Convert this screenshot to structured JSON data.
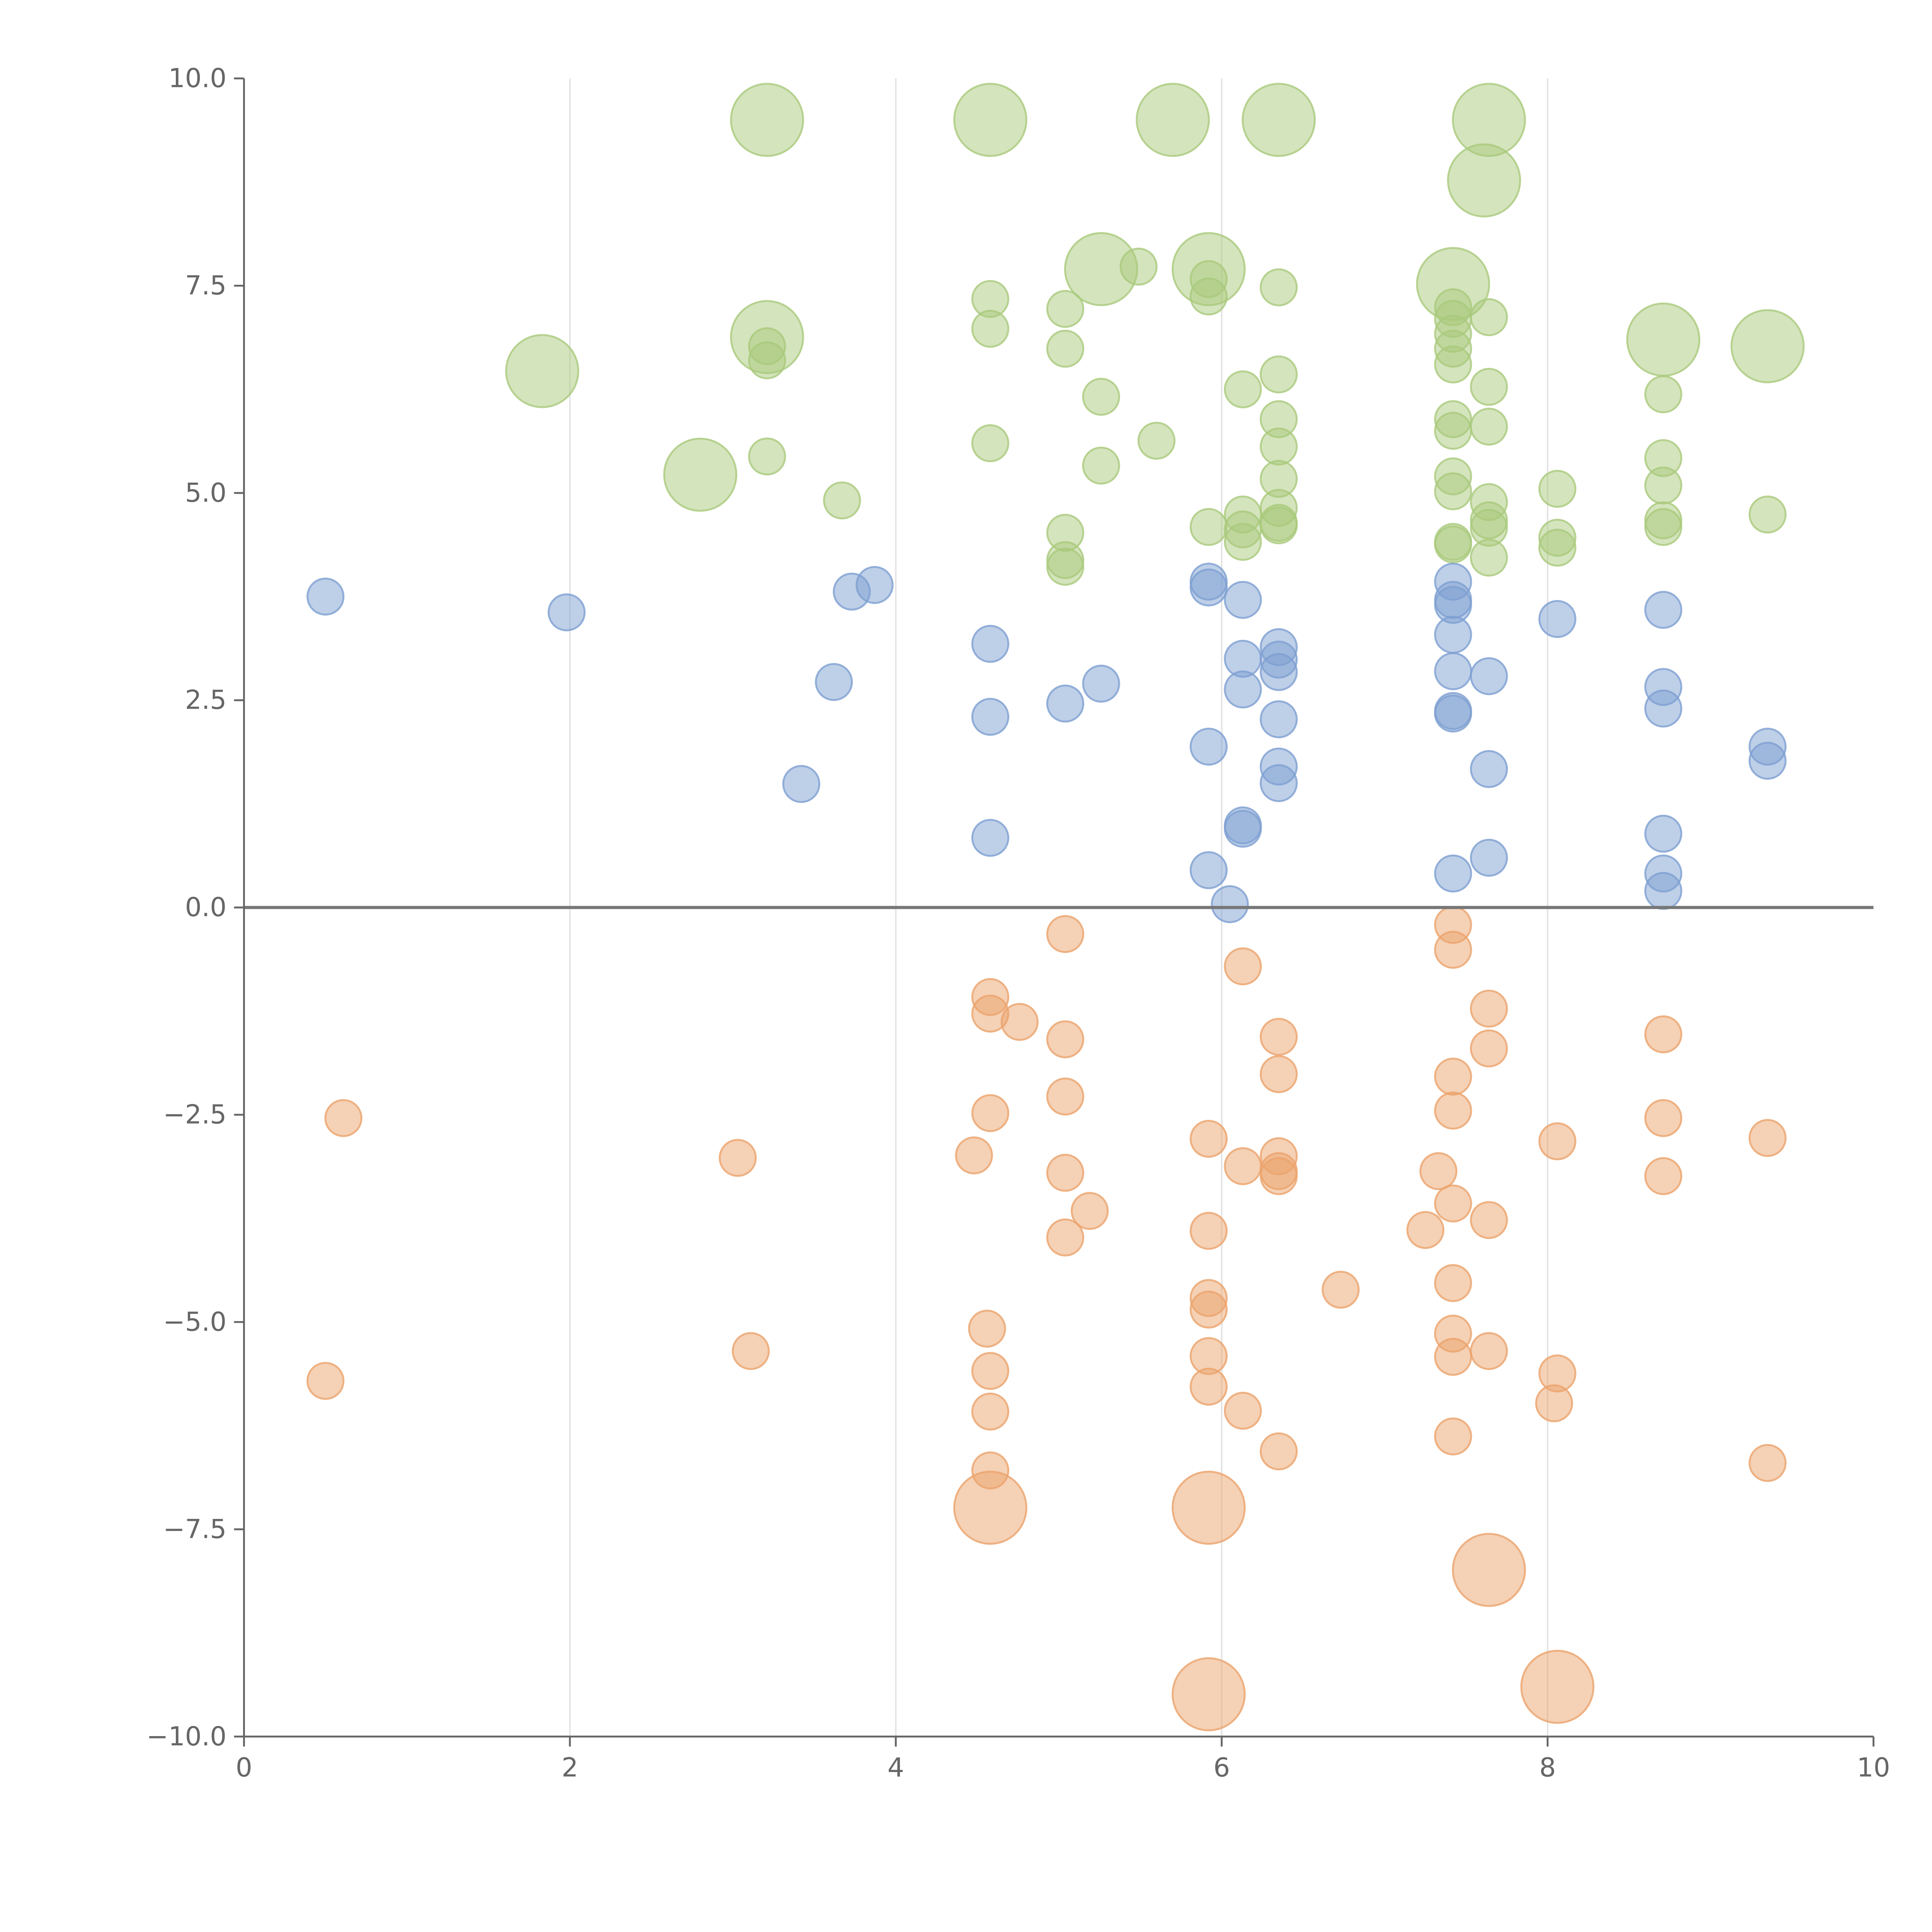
{
  "chart_data": {
    "type": "scatter",
    "title": "",
    "xlabel": "",
    "ylabel": "",
    "xlim": [
      0,
      10
    ],
    "ylim": [
      -10,
      10
    ],
    "xticks": [
      "0",
      "2",
      "4",
      "6",
      "8",
      "10"
    ],
    "yticks": [
      "10.0",
      "7.5",
      "5.0",
      "2.5",
      "0.0",
      "−2.5",
      "−5.0",
      "−7.5",
      "−10.0"
    ],
    "grid": "vertical",
    "legend": "none",
    "reference_line_y": 0,
    "colors": {
      "green": "#a9c97c",
      "blue": "#7d9fd1",
      "orange": "#eba36c",
      "axis": "#666666",
      "zero_line": "#777777",
      "grid": "#e3e3e3"
    },
    "series": [
      {
        "name": "green",
        "points": [
          [
            3.21,
            9.5,
            4
          ],
          [
            4.58,
            9.5,
            4
          ],
          [
            5.7,
            9.5,
            4
          ],
          [
            6.35,
            9.5,
            4
          ],
          [
            7.64,
            9.5,
            4
          ],
          [
            7.61,
            8.77,
            4
          ],
          [
            5.26,
            7.7,
            4
          ],
          [
            5.92,
            7.7,
            4
          ],
          [
            7.42,
            7.52,
            4
          ],
          [
            3.21,
            6.88,
            4
          ],
          [
            1.83,
            6.47,
            4
          ],
          [
            2.8,
            5.22,
            4
          ],
          [
            8.71,
            6.85,
            4
          ],
          [
            9.35,
            6.77,
            4
          ],
          [
            3.21,
            6.77,
            1
          ],
          [
            3.21,
            6.6,
            1
          ],
          [
            3.21,
            5.44,
            1
          ],
          [
            3.67,
            4.91,
            1
          ],
          [
            4.58,
            7.34,
            1
          ],
          [
            4.58,
            6.98,
            1
          ],
          [
            4.58,
            5.6,
            1
          ],
          [
            5.04,
            7.22,
            1
          ],
          [
            5.04,
            6.74,
            1
          ],
          [
            5.04,
            4.52,
            1
          ],
          [
            5.04,
            4.19,
            1
          ],
          [
            5.04,
            4.11,
            1
          ],
          [
            5.26,
            6.16,
            1
          ],
          [
            5.26,
            5.33,
            1
          ],
          [
            5.49,
            7.73,
            1
          ],
          [
            5.6,
            5.63,
            1
          ],
          [
            5.92,
            7.58,
            1
          ],
          [
            5.92,
            7.37,
            1
          ],
          [
            5.92,
            4.59,
            1
          ],
          [
            6.13,
            6.25,
            1
          ],
          [
            6.13,
            4.74,
            1
          ],
          [
            6.13,
            4.56,
            1
          ],
          [
            6.13,
            4.41,
            1
          ],
          [
            6.35,
            7.48,
            1
          ],
          [
            6.35,
            6.43,
            1
          ],
          [
            6.35,
            5.89,
            1
          ],
          [
            6.35,
            5.56,
            1
          ],
          [
            6.35,
            5.17,
            1
          ],
          [
            6.35,
            4.82,
            1
          ],
          [
            6.35,
            4.64,
            1
          ],
          [
            6.35,
            4.61,
            1
          ],
          [
            7.42,
            7.24,
            1
          ],
          [
            7.42,
            7.1,
            1
          ],
          [
            7.42,
            6.92,
            1
          ],
          [
            7.42,
            6.74,
            1
          ],
          [
            7.42,
            6.55,
            1
          ],
          [
            7.42,
            5.89,
            1
          ],
          [
            7.42,
            5.75,
            1
          ],
          [
            7.42,
            5.2,
            1
          ],
          [
            7.42,
            5.02,
            1
          ],
          [
            7.42,
            4.41,
            1
          ],
          [
            7.42,
            4.38,
            1
          ],
          [
            7.64,
            7.12,
            1
          ],
          [
            7.64,
            6.28,
            1
          ],
          [
            7.64,
            5.8,
            1
          ],
          [
            7.64,
            4.89,
            1
          ],
          [
            7.64,
            4.67,
            1
          ],
          [
            7.64,
            4.58,
            1
          ],
          [
            7.64,
            4.22,
            1
          ],
          [
            8.06,
            5.05,
            1
          ],
          [
            8.06,
            4.46,
            1
          ],
          [
            8.06,
            4.34,
            1
          ],
          [
            8.71,
            6.19,
            1
          ],
          [
            8.71,
            5.42,
            1
          ],
          [
            8.71,
            5.09,
            1
          ],
          [
            8.71,
            4.67,
            1
          ],
          [
            8.71,
            4.59,
            1
          ],
          [
            9.35,
            4.74,
            1
          ]
        ]
      },
      {
        "name": "blue",
        "points": [
          [
            0.5,
            3.75,
            1
          ],
          [
            1.98,
            3.56,
            1
          ],
          [
            3.42,
            1.49,
            1
          ],
          [
            3.62,
            2.72,
            1
          ],
          [
            3.73,
            3.81,
            1
          ],
          [
            3.87,
            3.89,
            1
          ],
          [
            4.58,
            3.18,
            1
          ],
          [
            4.58,
            2.3,
            1
          ],
          [
            4.58,
            0.84,
            1
          ],
          [
            5.04,
            2.46,
            1
          ],
          [
            5.26,
            2.7,
            1
          ],
          [
            5.92,
            3.93,
            1
          ],
          [
            5.92,
            3.86,
            1
          ],
          [
            5.92,
            1.94,
            1
          ],
          [
            5.92,
            0.45,
            1
          ],
          [
            6.05,
            0.04,
            1
          ],
          [
            6.13,
            3.71,
            1
          ],
          [
            6.13,
            3.0,
            1
          ],
          [
            6.13,
            2.63,
            1
          ],
          [
            6.13,
            0.99,
            1
          ],
          [
            6.13,
            0.95,
            1
          ],
          [
            6.35,
            3.14,
            1
          ],
          [
            6.35,
            2.99,
            1
          ],
          [
            6.35,
            2.84,
            1
          ],
          [
            6.35,
            2.27,
            1
          ],
          [
            6.35,
            1.7,
            1
          ],
          [
            6.35,
            1.5,
            1
          ],
          [
            7.42,
            3.93,
            1
          ],
          [
            7.42,
            3.71,
            1
          ],
          [
            7.42,
            3.65,
            1
          ],
          [
            7.42,
            3.29,
            1
          ],
          [
            7.42,
            2.85,
            1
          ],
          [
            7.42,
            2.37,
            1
          ],
          [
            7.42,
            2.34,
            1
          ],
          [
            7.42,
            0.41,
            1
          ],
          [
            7.64,
            2.79,
            1
          ],
          [
            7.64,
            1.67,
            1
          ],
          [
            7.64,
            0.6,
            1
          ],
          [
            8.06,
            3.48,
            1
          ],
          [
            8.71,
            3.59,
            1
          ],
          [
            8.71,
            2.66,
            1
          ],
          [
            8.71,
            2.4,
            1
          ],
          [
            8.71,
            0.89,
            1
          ],
          [
            8.71,
            0.41,
            1
          ],
          [
            8.71,
            0.2,
            1
          ],
          [
            9.35,
            1.94,
            1
          ],
          [
            9.35,
            1.77,
            1
          ]
        ]
      },
      {
        "name": "orange",
        "points": [
          [
            4.58,
            -7.24,
            4
          ],
          [
            5.92,
            -7.24,
            4
          ],
          [
            7.64,
            -7.99,
            4
          ],
          [
            5.92,
            -9.49,
            4
          ],
          [
            8.06,
            -9.4,
            4
          ],
          [
            0.61,
            -2.54,
            1
          ],
          [
            0.5,
            -5.71,
            1
          ],
          [
            3.03,
            -3.02,
            1
          ],
          [
            3.11,
            -5.35,
            1
          ],
          [
            4.48,
            -2.99,
            1
          ],
          [
            4.58,
            -1.08,
            1
          ],
          [
            4.58,
            -1.28,
            1
          ],
          [
            4.58,
            -2.48,
            1
          ],
          [
            4.56,
            -5.08,
            1
          ],
          [
            4.58,
            -5.59,
            1
          ],
          [
            4.58,
            -6.08,
            1
          ],
          [
            4.58,
            -6.79,
            1
          ],
          [
            4.76,
            -1.38,
            1
          ],
          [
            5.04,
            -0.32,
            1
          ],
          [
            5.04,
            -1.59,
            1
          ],
          [
            5.04,
            -2.28,
            1
          ],
          [
            5.04,
            -3.2,
            1
          ],
          [
            5.04,
            -3.98,
            1
          ],
          [
            5.19,
            -3.66,
            1
          ],
          [
            5.92,
            -2.79,
            1
          ],
          [
            5.92,
            -3.9,
            1
          ],
          [
            5.92,
            -4.71,
            1
          ],
          [
            5.92,
            -4.85,
            1
          ],
          [
            5.92,
            -5.41,
            1
          ],
          [
            5.92,
            -5.78,
            1
          ],
          [
            6.13,
            -0.71,
            1
          ],
          [
            6.13,
            -3.12,
            1
          ],
          [
            6.13,
            -6.07,
            1
          ],
          [
            6.35,
            -1.56,
            1
          ],
          [
            6.35,
            -2.01,
            1
          ],
          [
            6.35,
            -3.0,
            1
          ],
          [
            6.35,
            -3.18,
            1
          ],
          [
            6.35,
            -3.24,
            1
          ],
          [
            6.35,
            -6.56,
            1
          ],
          [
            6.73,
            -4.61,
            1
          ],
          [
            7.25,
            -3.89,
            1
          ],
          [
            7.33,
            -3.18,
            1
          ],
          [
            7.42,
            -0.21,
            1
          ],
          [
            7.42,
            -0.51,
            1
          ],
          [
            7.42,
            -2.04,
            1
          ],
          [
            7.42,
            -2.45,
            1
          ],
          [
            7.42,
            -3.57,
            1
          ],
          [
            7.42,
            -4.53,
            1
          ],
          [
            7.42,
            -5.14,
            1
          ],
          [
            7.42,
            -5.42,
            1
          ],
          [
            7.42,
            -6.38,
            1
          ],
          [
            7.64,
            -1.22,
            1
          ],
          [
            7.64,
            -1.7,
            1
          ],
          [
            7.64,
            -3.77,
            1
          ],
          [
            7.64,
            -5.35,
            1
          ],
          [
            8.06,
            -2.82,
            1
          ],
          [
            8.06,
            -5.62,
            1
          ],
          [
            8.04,
            -5.98,
            1
          ],
          [
            8.71,
            -1.53,
            1
          ],
          [
            8.71,
            -2.54,
            1
          ],
          [
            8.71,
            -3.24,
            1
          ],
          [
            9.35,
            -2.78,
            1
          ],
          [
            9.35,
            -6.7,
            1
          ]
        ]
      }
    ]
  }
}
